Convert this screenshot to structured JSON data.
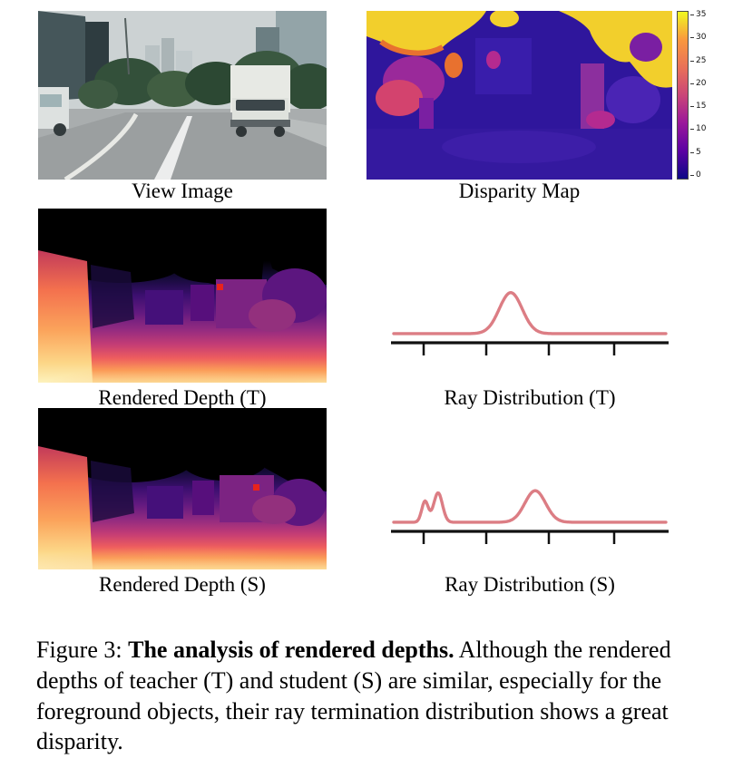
{
  "figure_number": "Figure 3",
  "labels": {
    "view_image": "View Image",
    "disparity_map": "Disparity Map",
    "rendered_depth_t": "Rendered Depth (T)",
    "rendered_depth_s": "Rendered Depth (S)"
  },
  "caption": {
    "prefix": "Figure 3: ",
    "bold": "The analysis of rendered depths.",
    "rest": " Although the rendered depths of teacher (T) and student (S) are similar, especially for the foreground objects, their ray termination distribution shows a great disparity."
  },
  "colorbar": {
    "tick_labels": [
      "35",
      "30",
      "25",
      "20",
      "15",
      "10",
      "5",
      "0"
    ],
    "colors": [
      "#0d0887",
      "#5b02a3",
      "#9a179b",
      "#ca4678",
      "#e97158",
      "#f9983e",
      "#f0f921"
    ]
  },
  "markers": {
    "depth_t": {
      "x": 0.63,
      "y": 0.45
    },
    "depth_s": {
      "x": 0.755,
      "y": 0.49
    }
  },
  "marker_color": "#e8231d",
  "chart_data": [
    {
      "id": "ray-distribution-t",
      "type": "line",
      "title": "Ray Distribution (T)",
      "xlabel": "",
      "ylabel": "",
      "x_range": [
        0,
        1
      ],
      "y_range": [
        0,
        1
      ],
      "grid": false,
      "legend": null,
      "baseline": 0.07,
      "peaks": [
        {
          "center": 0.43,
          "height": 0.78,
          "sigma": 0.042
        }
      ],
      "x_ticks": [
        0.11,
        0.34,
        0.57,
        0.81
      ],
      "line_color": "#dc7d84",
      "axis_color": "#111111"
    },
    {
      "id": "ray-distribution-s",
      "type": "line",
      "title": "Ray Distribution (S)",
      "xlabel": "",
      "ylabel": "",
      "x_range": [
        0,
        1
      ],
      "y_range": [
        0,
        1
      ],
      "grid": false,
      "legend": null,
      "baseline": 0.07,
      "peaks": [
        {
          "center": 0.115,
          "height": 0.4,
          "sigma": 0.012
        },
        {
          "center": 0.163,
          "height": 0.56,
          "sigma": 0.016
        },
        {
          "center": 0.52,
          "height": 0.6,
          "sigma": 0.038
        }
      ],
      "x_ticks": [
        0.11,
        0.34,
        0.57,
        0.81
      ],
      "line_color": "#dc7d84",
      "axis_color": "#111111"
    }
  ]
}
